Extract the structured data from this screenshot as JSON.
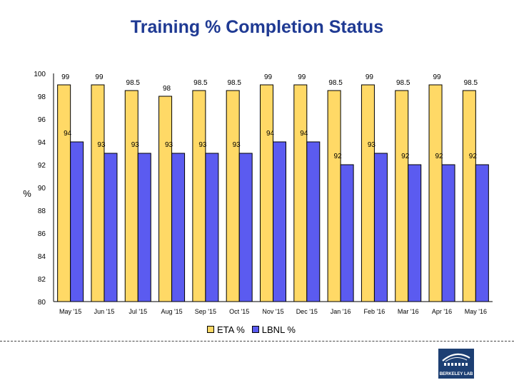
{
  "colors": {
    "eta": "#ffd966",
    "lbnl": "#5b5bf0",
    "title": "#1f3a93",
    "border": "#000000"
  },
  "chart_data": {
    "type": "bar",
    "title": "Training % Completion Status",
    "xlabel": "",
    "ylabel": "%",
    "ylim": [
      80,
      100
    ],
    "yticks": [
      80,
      82,
      84,
      86,
      88,
      90,
      92,
      94,
      96,
      98,
      100
    ],
    "categories": [
      "May '15",
      "Jun '15",
      "Jul '15",
      "Aug '15",
      "Sep '15",
      "Oct '15",
      "Nov '15",
      "Dec '15",
      "Jan '16",
      "Feb '16",
      "Mar '16",
      "Apr '16",
      "May '16"
    ],
    "series": [
      {
        "name": "ETA %",
        "values": [
          99,
          99,
          98.5,
          98,
          98.5,
          98.5,
          99,
          99,
          98.5,
          99,
          98.5,
          99,
          98.5
        ]
      },
      {
        "name": "LBNL %",
        "values": [
          94,
          93,
          93,
          93,
          93,
          93,
          94,
          94,
          92,
          93,
          92,
          92,
          92
        ]
      }
    ],
    "legend_position": "bottom"
  },
  "logo": {
    "text": "BERKELEY LAB",
    "icon": "berkeley-lab-logo-icon"
  }
}
